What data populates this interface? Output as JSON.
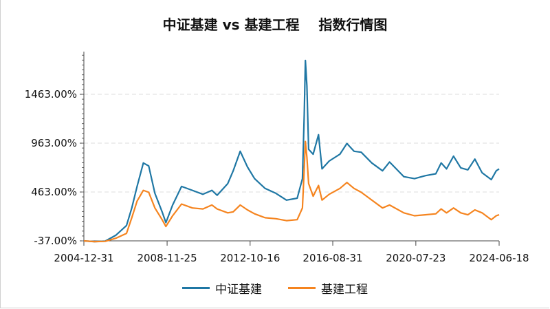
{
  "chart_data": {
    "type": "line",
    "title": "中证基建 vs 基建工程    指数行情图",
    "xlabel": "",
    "ylabel": "",
    "x_ticks": [
      "2004-12-31",
      "2008-11-25",
      "2012-10-16",
      "2016-08-31",
      "2020-07-23",
      "2024-06-18"
    ],
    "y_ticks": [
      "-37.00%",
      "463.00%",
      "963.00%",
      "1463.00%"
    ],
    "ylim": [
      -37,
      1900
    ],
    "grid": "horizontal dashed",
    "legend_position": "bottom",
    "series": [
      {
        "name": "中证基建",
        "color": "#1f77a4",
        "points": [
          [
            "2004-12-31",
            -37
          ],
          [
            "2005-06-30",
            -45
          ],
          [
            "2005-12-31",
            -40
          ],
          [
            "2006-06-30",
            20
          ],
          [
            "2006-12-31",
            120
          ],
          [
            "2007-03-31",
            300
          ],
          [
            "2007-06-30",
            520
          ],
          [
            "2007-10-15",
            760
          ],
          [
            "2008-01-15",
            730
          ],
          [
            "2008-04-30",
            450
          ],
          [
            "2008-08-31",
            260
          ],
          [
            "2008-11-04",
            150
          ],
          [
            "2009-02-28",
            330
          ],
          [
            "2009-07-31",
            520
          ],
          [
            "2010-01-31",
            480
          ],
          [
            "2010-07-31",
            440
          ],
          [
            "2010-12-31",
            480
          ],
          [
            "2011-03-31",
            430
          ],
          [
            "2011-09-30",
            550
          ],
          [
            "2011-12-31",
            680
          ],
          [
            "2012-04-30",
            880
          ],
          [
            "2012-08-31",
            720
          ],
          [
            "2012-12-31",
            600
          ],
          [
            "2013-06-30",
            500
          ],
          [
            "2013-12-31",
            450
          ],
          [
            "2014-06-30",
            380
          ],
          [
            "2014-12-31",
            400
          ],
          [
            "2015-03-31",
            600
          ],
          [
            "2015-04-30",
            1250
          ],
          [
            "2015-05-20",
            1810
          ],
          [
            "2015-06-15",
            1550
          ],
          [
            "2015-07-15",
            900
          ],
          [
            "2015-09-30",
            850
          ],
          [
            "2015-12-31",
            1050
          ],
          [
            "2016-02-29",
            700
          ],
          [
            "2016-06-30",
            780
          ],
          [
            "2016-12-31",
            850
          ],
          [
            "2017-04-30",
            960
          ],
          [
            "2017-08-31",
            880
          ],
          [
            "2017-12-31",
            870
          ],
          [
            "2018-06-30",
            760
          ],
          [
            "2018-12-31",
            680
          ],
          [
            "2019-04-30",
            770
          ],
          [
            "2019-12-31",
            620
          ],
          [
            "2020-06-30",
            600
          ],
          [
            "2020-12-31",
            630
          ],
          [
            "2021-06-30",
            650
          ],
          [
            "2021-09-30",
            760
          ],
          [
            "2021-12-31",
            700
          ],
          [
            "2022-04-30",
            830
          ],
          [
            "2022-08-31",
            710
          ],
          [
            "2022-12-31",
            690
          ],
          [
            "2023-04-30",
            800
          ],
          [
            "2023-08-31",
            660
          ],
          [
            "2024-02-05",
            590
          ],
          [
            "2024-04-30",
            680
          ],
          [
            "2024-06-18",
            700
          ]
        ]
      },
      {
        "name": "基建工程",
        "color": "#f5841f",
        "points": [
          [
            "2004-12-31",
            -37
          ],
          [
            "2005-06-30",
            -45
          ],
          [
            "2005-12-31",
            -42
          ],
          [
            "2006-06-30",
            -10
          ],
          [
            "2006-12-31",
            40
          ],
          [
            "2007-03-31",
            200
          ],
          [
            "2007-06-30",
            370
          ],
          [
            "2007-10-15",
            480
          ],
          [
            "2008-01-15",
            460
          ],
          [
            "2008-04-30",
            300
          ],
          [
            "2008-08-31",
            180
          ],
          [
            "2008-11-04",
            110
          ],
          [
            "2009-02-28",
            220
          ],
          [
            "2009-07-31",
            340
          ],
          [
            "2010-01-31",
            300
          ],
          [
            "2010-07-31",
            290
          ],
          [
            "2010-12-31",
            330
          ],
          [
            "2011-03-31",
            290
          ],
          [
            "2011-09-30",
            250
          ],
          [
            "2011-12-31",
            260
          ],
          [
            "2012-04-30",
            330
          ],
          [
            "2012-08-31",
            280
          ],
          [
            "2012-12-31",
            240
          ],
          [
            "2013-06-30",
            200
          ],
          [
            "2013-12-31",
            190
          ],
          [
            "2014-06-30",
            170
          ],
          [
            "2014-12-31",
            180
          ],
          [
            "2015-03-31",
            300
          ],
          [
            "2015-04-30",
            700
          ],
          [
            "2015-05-20",
            980
          ],
          [
            "2015-06-15",
            820
          ],
          [
            "2015-07-15",
            550
          ],
          [
            "2015-09-30",
            420
          ],
          [
            "2015-12-31",
            530
          ],
          [
            "2016-02-29",
            380
          ],
          [
            "2016-06-30",
            440
          ],
          [
            "2016-12-31",
            500
          ],
          [
            "2017-04-30",
            560
          ],
          [
            "2017-08-31",
            500
          ],
          [
            "2017-12-31",
            460
          ],
          [
            "2018-06-30",
            380
          ],
          [
            "2018-12-31",
            300
          ],
          [
            "2019-04-30",
            330
          ],
          [
            "2019-12-31",
            250
          ],
          [
            "2020-06-30",
            220
          ],
          [
            "2020-12-31",
            230
          ],
          [
            "2021-06-30",
            240
          ],
          [
            "2021-09-30",
            290
          ],
          [
            "2021-12-31",
            250
          ],
          [
            "2022-04-30",
            300
          ],
          [
            "2022-08-31",
            250
          ],
          [
            "2022-12-31",
            230
          ],
          [
            "2023-04-30",
            280
          ],
          [
            "2023-08-31",
            250
          ],
          [
            "2024-02-05",
            180
          ],
          [
            "2024-04-30",
            220
          ],
          [
            "2024-06-18",
            230
          ]
        ]
      }
    ]
  }
}
